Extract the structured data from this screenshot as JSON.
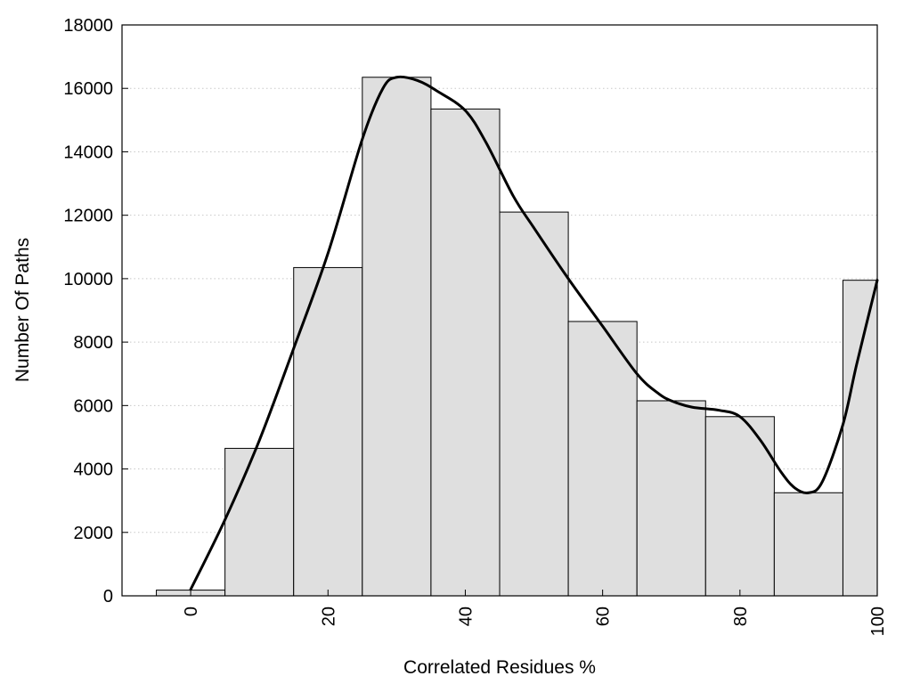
{
  "chart_data": {
    "type": "bar",
    "title": "",
    "xlabel": "Correlated Residues %",
    "ylabel": "Number Of Paths",
    "x_ticks": [
      "0",
      "20",
      "40",
      "60",
      "80",
      "100"
    ],
    "y_ticks": [
      "0",
      "2000",
      "4000",
      "6000",
      "8000",
      "10000",
      "12000",
      "14000",
      "16000",
      "18000"
    ],
    "xlim": [
      -10,
      100
    ],
    "ylim": [
      0,
      18000
    ],
    "grid": "horizontal dotted",
    "bars": {
      "centers": [
        0,
        10,
        20,
        30,
        40,
        50,
        60,
        70,
        80,
        90,
        100
      ],
      "values": [
        180,
        4650,
        10350,
        16350,
        15350,
        12100,
        8650,
        6150,
        5650,
        3250,
        9950
      ],
      "bin_width": 10
    },
    "curve": {
      "x": [
        0,
        5,
        10,
        15,
        20,
        25,
        28,
        30,
        33,
        36,
        40,
        43,
        47,
        50,
        55,
        60,
        65,
        68,
        70,
        73,
        77,
        80,
        83,
        86,
        88,
        90,
        92,
        95,
        97,
        100
      ],
      "y": [
        200,
        2400,
        4900,
        7800,
        10800,
        14400,
        16000,
        16350,
        16250,
        15900,
        15300,
        14300,
        12600,
        11600,
        10000,
        8500,
        7000,
        6400,
        6150,
        5950,
        5850,
        5650,
        4900,
        3900,
        3400,
        3250,
        3600,
        5400,
        7300,
        9950
      ]
    },
    "colors": {
      "bar_fill": "#dfdfdf",
      "bar_stroke": "#000000",
      "curve": "#000000",
      "grid": "#c8c8c8"
    }
  }
}
